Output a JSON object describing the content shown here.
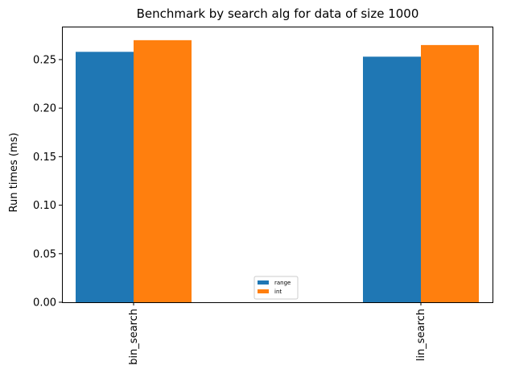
{
  "chart_data": {
    "type": "bar",
    "title": "Benchmark by search alg for data of size 1000",
    "xlabel": "",
    "ylabel": "Run times (ms)",
    "categories": [
      "bin_search",
      "lin_search"
    ],
    "series": [
      {
        "name": "range",
        "color": "#1f77b4",
        "values": [
          0.258,
          0.253
        ]
      },
      {
        "name": "int",
        "color": "#ff7f0e",
        "values": [
          0.27,
          0.265
        ]
      }
    ],
    "ylim": [
      0,
      0.284
    ],
    "yticks": [
      0.0,
      0.05,
      0.1,
      0.15,
      0.2,
      0.25
    ],
    "ytick_labels": [
      "0.00",
      "0.05",
      "0.10",
      "0.15",
      "0.20",
      "0.25"
    ],
    "xtick_rotation": 90,
    "grid": false,
    "legend_position": "lower-center"
  }
}
